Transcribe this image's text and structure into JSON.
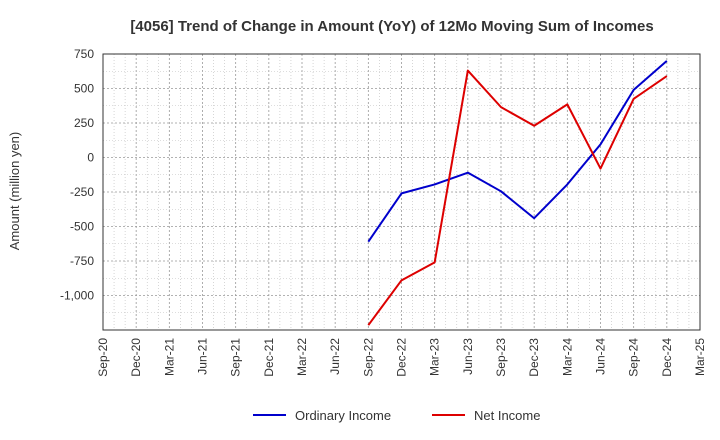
{
  "chart_data": {
    "type": "line",
    "title": "[4056]  Trend of Change in Amount (YoY) of 12Mo Moving Sum of Incomes",
    "xlabel": "",
    "ylabel": "Amount (million yen)",
    "categories": [
      "Sep-20",
      "Dec-20",
      "Mar-21",
      "Jun-21",
      "Sep-21",
      "Dec-21",
      "Mar-22",
      "Jun-22",
      "Sep-22",
      "Dec-22",
      "Mar-23",
      "Jun-23",
      "Sep-23",
      "Dec-23",
      "Mar-24",
      "Jun-24",
      "Sep-24",
      "Dec-24",
      "Mar-25"
    ],
    "y_ticks": [
      750,
      500,
      250,
      0,
      -250,
      -500,
      -750,
      -1000
    ],
    "y_tick_labels": [
      "750",
      "500",
      "250",
      "0",
      "-250",
      "-500",
      "-750",
      "-1,000"
    ],
    "ylim": [
      -1250,
      750
    ],
    "grid": true,
    "legend_position": "bottom",
    "series": [
      {
        "name": "Ordinary Income",
        "color": "#0000cc",
        "values": [
          null,
          null,
          null,
          null,
          null,
          null,
          null,
          null,
          -610,
          -260,
          -195,
          -110,
          -245,
          -440,
          -195,
          95,
          490,
          700,
          null
        ]
      },
      {
        "name": "Net Income",
        "color": "#dd0000",
        "values": [
          null,
          null,
          null,
          null,
          null,
          null,
          null,
          null,
          -1215,
          -890,
          -760,
          630,
          365,
          230,
          385,
          -80,
          425,
          590,
          null
        ]
      }
    ]
  }
}
